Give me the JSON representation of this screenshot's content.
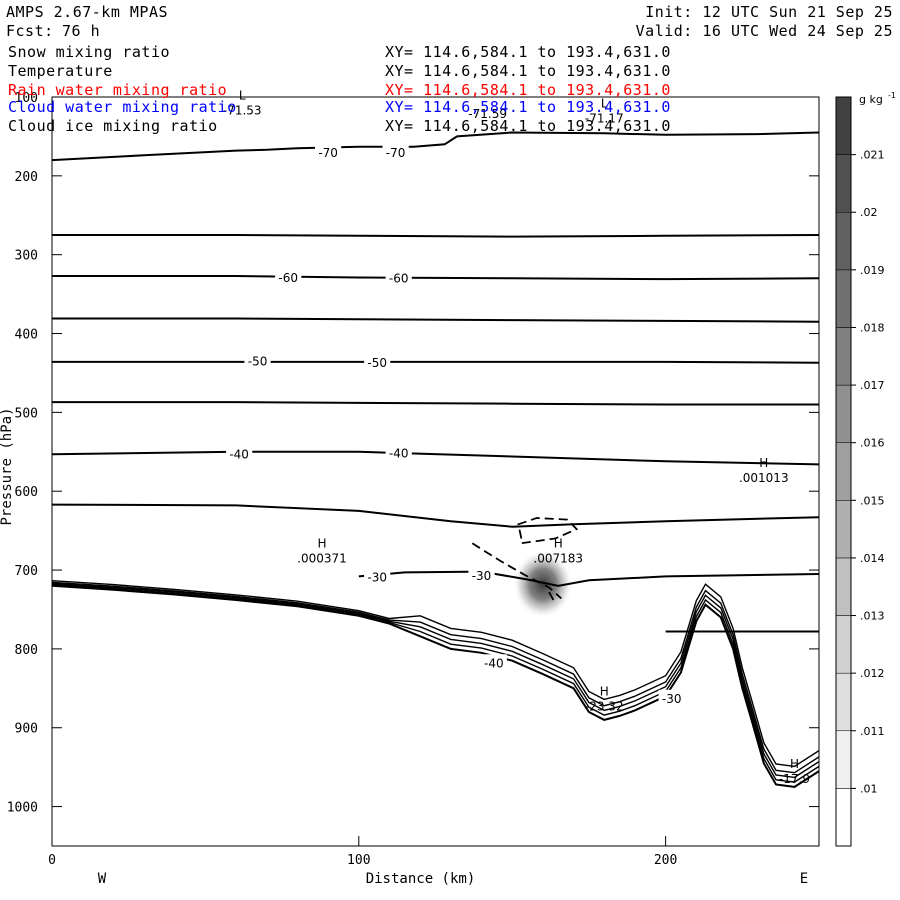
{
  "header": {
    "model": "AMPS 2.67-km MPAS",
    "init": "Init: 12 UTC Sun 21 Sep 25",
    "fcst_label": "Fcst:",
    "fcst_value": "76 h",
    "valid": "Valid: 16 UTC Wed 24 Sep 25"
  },
  "legend": {
    "fields": [
      {
        "name": "Snow mixing ratio",
        "xy": "XY= 114.6,584.1 to 193.4,631.0",
        "color": "#000000"
      },
      {
        "name": "Temperature",
        "xy": "XY= 114.6,584.1 to 193.4,631.0",
        "color": "#000000"
      },
      {
        "name": "Rain water mixing ratio",
        "xy": "XY= 114.6,584.1 to 193.4,631.0",
        "color": "#ff0000"
      },
      {
        "name": "Cloud water mixing ratio",
        "xy": "XY= 114.6,584.1 to 193.4,631.0",
        "color": "#0000ff"
      },
      {
        "name": "Cloud ice mixing ratio",
        "xy": "XY= 114.6,584.1 to 193.4,631.0",
        "color": "#000000"
      }
    ]
  },
  "chart_data": {
    "type": "line",
    "xlabel": "Distance (km)",
    "ylabel": "Pressure (hPa)",
    "xlim": [
      0,
      250
    ],
    "ylim": [
      100,
      1050
    ],
    "y_scale": "linear-inverted",
    "x_ticks": [
      0,
      100,
      200
    ],
    "x_tick_labels": [
      "0",
      "100",
      "200"
    ],
    "y_ticks": [
      100,
      200,
      300,
      400,
      500,
      600,
      700,
      800,
      900,
      1000
    ],
    "y_tick_labels": [
      "100",
      "200",
      "300",
      "400",
      "500",
      "600",
      "700",
      "800",
      "900",
      "1000"
    ],
    "endpoint_labels": {
      "left": "W",
      "right": "E"
    },
    "grid": false,
    "colorbar": {
      "unit": "g kg",
      "unit_exp": "-1",
      "levels": [
        0.01,
        0.011,
        0.012,
        0.013,
        0.014,
        0.015,
        0.016,
        0.017,
        0.018,
        0.019,
        0.02,
        0.021
      ],
      "labels": [
        ".01",
        ".011",
        ".012",
        ".013",
        ".014",
        ".015",
        ".016",
        ".017",
        ".018",
        ".019",
        ".02",
        ".021"
      ]
    },
    "isotherms": [
      {
        "level": -70,
        "points": [
          [
            0,
            180
          ],
          [
            30,
            174
          ],
          [
            60,
            168
          ],
          [
            70,
            167
          ],
          [
            80,
            165
          ],
          [
            100,
            163
          ],
          [
            118,
            163
          ],
          [
            128,
            160
          ],
          [
            132,
            150
          ],
          [
            150,
            145
          ],
          [
            180,
            146
          ],
          [
            200,
            148
          ],
          [
            230,
            147
          ],
          [
            250,
            145
          ]
        ]
      },
      {
        "level": -60,
        "points": [
          [
            0,
            275
          ],
          [
            60,
            275
          ],
          [
            100,
            276
          ],
          [
            150,
            277
          ],
          [
            200,
            276
          ],
          [
            250,
            275
          ]
        ]
      },
      {
        "level": -60,
        "points": [
          [
            0,
            327
          ],
          [
            60,
            327
          ],
          [
            100,
            329
          ],
          [
            150,
            330
          ],
          [
            200,
            331
          ],
          [
            250,
            330
          ]
        ]
      },
      {
        "level": -50,
        "points": [
          [
            0,
            381
          ],
          [
            60,
            381
          ],
          [
            100,
            382
          ],
          [
            150,
            383
          ],
          [
            200,
            384
          ],
          [
            250,
            385
          ]
        ]
      },
      {
        "level": -50,
        "points": [
          [
            0,
            436
          ],
          [
            60,
            436
          ],
          [
            100,
            436
          ],
          [
            150,
            436
          ],
          [
            200,
            436
          ],
          [
            250,
            437
          ]
        ]
      },
      {
        "level": -40,
        "points": [
          [
            0,
            487
          ],
          [
            60,
            487
          ],
          [
            100,
            488
          ],
          [
            150,
            489
          ],
          [
            200,
            490
          ],
          [
            250,
            490
          ]
        ]
      },
      {
        "level": -40,
        "points": [
          [
            0,
            553
          ],
          [
            60,
            550
          ],
          [
            100,
            550
          ],
          [
            150,
            556
          ],
          [
            200,
            562
          ],
          [
            250,
            566
          ]
        ]
      },
      {
        "level": -30,
        "points": [
          [
            0,
            617
          ],
          [
            60,
            618
          ],
          [
            100,
            625
          ],
          [
            130,
            638
          ],
          [
            150,
            645
          ],
          [
            170,
            642
          ],
          [
            200,
            638
          ],
          [
            250,
            633
          ]
        ]
      },
      {
        "level": -30,
        "points": [
          [
            100,
            708
          ],
          [
            115,
            703
          ],
          [
            140,
            702
          ],
          [
            155,
            712
          ],
          [
            165,
            720
          ],
          [
            175,
            713
          ],
          [
            200,
            708
          ],
          [
            250,
            705
          ]
        ]
      },
      {
        "level": -30,
        "points": [
          [
            200,
            778
          ],
          [
            250,
            778
          ]
        ]
      }
    ],
    "terrain": [
      [
        0,
        720
      ],
      [
        20,
        725
      ],
      [
        40,
        731
      ],
      [
        60,
        738
      ],
      [
        80,
        746
      ],
      [
        100,
        758
      ],
      [
        110,
        768
      ],
      [
        120,
        784
      ],
      [
        130,
        800
      ],
      [
        140,
        805
      ],
      [
        150,
        815
      ],
      [
        160,
        832
      ],
      [
        170,
        850
      ],
      [
        175,
        880
      ],
      [
        180,
        890
      ],
      [
        185,
        885
      ],
      [
        190,
        878
      ],
      [
        200,
        860
      ],
      [
        205,
        830
      ],
      [
        210,
        765
      ],
      [
        213,
        744
      ],
      [
        218,
        760
      ],
      [
        222,
        800
      ],
      [
        225,
        850
      ],
      [
        228,
        890
      ],
      [
        232,
        945
      ],
      [
        236,
        972
      ],
      [
        242,
        975
      ],
      [
        250,
        955
      ]
    ],
    "extrema": [
      {
        "type": "L",
        "value": "-71.53",
        "x": 62,
        "p": 112
      },
      {
        "type": "L",
        "value": "-71.17",
        "x": 180,
        "p": 122
      },
      {
        "type": "H",
        "value": ".000371",
        "x": 88,
        "p": 680
      },
      {
        "type": "H",
        "value": ".007183",
        "x": 165,
        "p": 680
      },
      {
        "type": "H",
        "value": ".001013",
        "x": 232,
        "p": 578
      },
      {
        "type": "H",
        "value": "-23.32",
        "x": 180,
        "p": 868
      },
      {
        "type": "H",
        "value": "-17.9",
        "x": 242,
        "p": 960
      }
    ],
    "contour_labels": [
      {
        "text": "-70",
        "x": 90,
        "p": 170
      },
      {
        "text": "-70",
        "x": 112,
        "p": 170
      },
      {
        "text": "-71.59",
        "x": 142,
        "p": 120
      },
      {
        "text": "-60",
        "x": 77,
        "p": 328
      },
      {
        "text": "-60",
        "x": 113,
        "p": 329
      },
      {
        "text": "-50",
        "x": 67,
        "p": 434
      },
      {
        "text": "-50",
        "x": 106,
        "p": 436
      },
      {
        "text": "-40",
        "x": 61,
        "p": 552
      },
      {
        "text": "-40",
        "x": 113,
        "p": 551
      },
      {
        "text": "-30",
        "x": 106,
        "p": 708
      },
      {
        "text": "-30",
        "x": 140,
        "p": 706
      },
      {
        "text": "-40",
        "x": 144,
        "p": 817
      },
      {
        "text": "-30",
        "x": 202,
        "p": 862
      }
    ],
    "shading_max": {
      "x": 160,
      "p": 718,
      "value": 0.007183
    }
  }
}
